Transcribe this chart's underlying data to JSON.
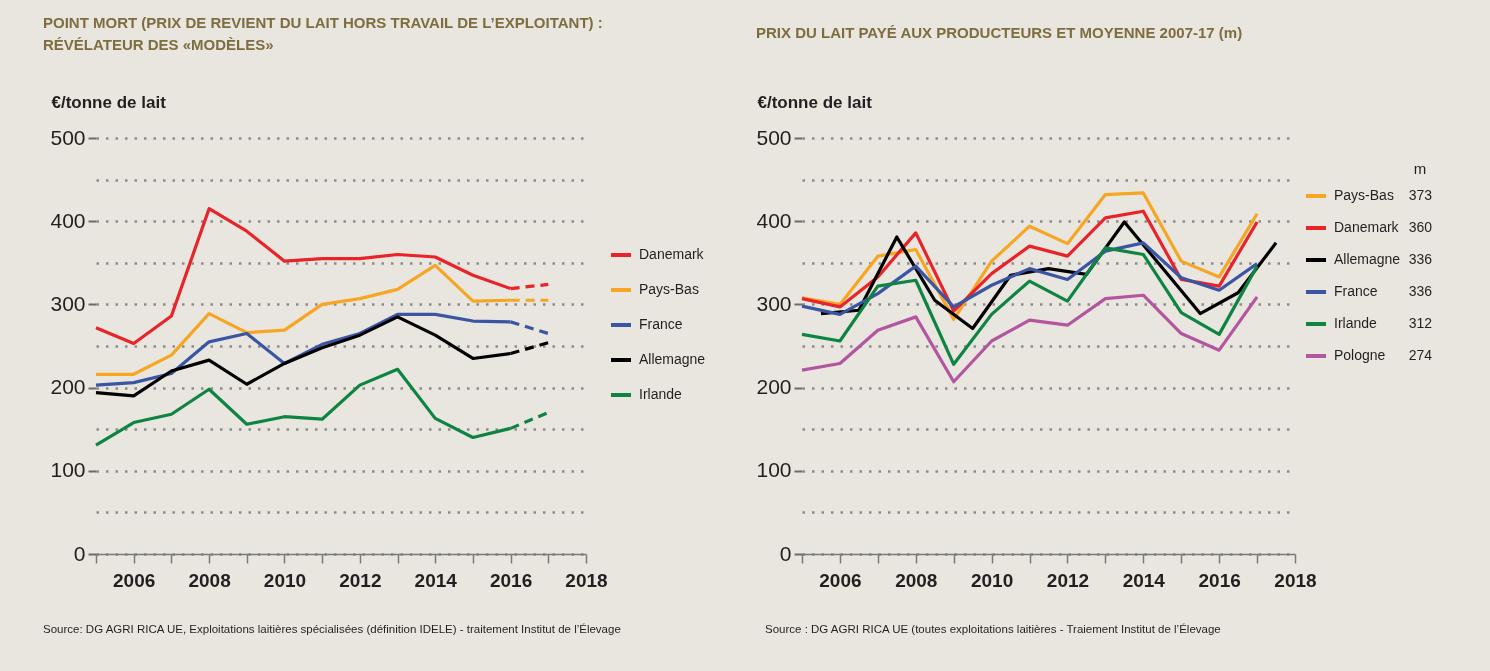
{
  "chart_data": [
    {
      "type": "line",
      "title": "POINT MORT (PRIX DE REVIENT DU LAIT HORS TRAVAIL DE L’EXPLOITANT) : RÉVÉLATEUR DES «MODÈLES»",
      "ylabel": "€/tonne de lait",
      "x": [
        2005,
        2006,
        2007,
        2008,
        2009,
        2010,
        2011,
        2012,
        2013,
        2014,
        2015,
        2016
      ],
      "series": [
        {
          "name": "Danemark",
          "color": "#e8232a",
          "values": [
            272,
            253,
            286,
            415,
            388,
            352,
            355,
            355,
            360,
            357,
            335,
            319
          ]
        },
        {
          "name": "Pays-Bas",
          "color": "#f6a623",
          "values": [
            216,
            216,
            239,
            289,
            266,
            269,
            300,
            307,
            318,
            347,
            304,
            305
          ]
        },
        {
          "name": "France",
          "color": "#3a55a4",
          "values": [
            203,
            206,
            217,
            255,
            265,
            229,
            252,
            265,
            288,
            288,
            280,
            279
          ]
        },
        {
          "name": "Allemagne",
          "color": "#000000",
          "values": [
            194,
            190,
            220,
            233,
            204,
            229,
            248,
            263,
            285,
            263,
            235,
            241
          ]
        },
        {
          "name": "Irlande",
          "color": "#0e8443",
          "values": [
            131,
            158,
            168,
            198,
            156,
            165,
            162,
            203,
            222,
            163,
            140,
            151
          ]
        },
        {
          "color": "#e8232a",
          "line_style": "dashed",
          "x": [
            2016,
            2017
          ],
          "values": [
            319,
            324
          ]
        },
        {
          "color": "#f6a623",
          "line_style": "dashed",
          "x": [
            2016,
            2017
          ],
          "values": [
            305,
            305
          ]
        },
        {
          "color": "#3a55a4",
          "line_style": "dashed",
          "x": [
            2016,
            2017
          ],
          "values": [
            279,
            265
          ]
        },
        {
          "color": "#000000",
          "line_style": "dashed",
          "x": [
            2016,
            2017
          ],
          "values": [
            241,
            254
          ]
        },
        {
          "color": "#0e8443",
          "line_style": "dashed",
          "x": [
            2016,
            2017
          ],
          "values": [
            151,
            170
          ]
        }
      ],
      "xlim": [
        2005,
        2018
      ],
      "xticks": [
        {
          "value": 2005,
          "label": null
        },
        2006,
        {
          "value": 2007,
          "label": null
        },
        2008,
        {
          "value": 2009,
          "label": null
        },
        2010,
        {
          "value": 2011,
          "label": null
        },
        2012,
        {
          "value": 2013,
          "label": null
        },
        2014,
        {
          "value": 2015,
          "label": null
        },
        2016,
        {
          "value": 2017,
          "label": null
        },
        2018
      ],
      "ylim": [
        0,
        500
      ],
      "yticks": [
        0,
        {
          "value": 50,
          "label": null
        },
        100,
        {
          "value": 150,
          "label": null
        },
        200,
        {
          "value": 250,
          "label": null
        },
        300,
        {
          "value": 350,
          "label": null
        },
        400,
        {
          "value": 450,
          "label": null
        },
        500
      ],
      "grid": "y",
      "legend": "right",
      "annotations": [
        "Source: DG AGRI RICA UE, Exploitations laitières spécialisées (définition IDELE) - traitement Institut de l’Élevage"
      ]
    },
    {
      "type": "line",
      "title": "PRIX DU LAIT PAYÉ AUX PRODUCTEURS ET MOYENNE 2007-17 (m)",
      "ylabel": "€/tonne de lait",
      "legend_title": "m",
      "x": [
        2005,
        2006,
        2007,
        2008,
        2009,
        2010,
        2011,
        2012,
        2013,
        2014,
        2015,
        2016,
        2017
      ],
      "series": [
        {
          "name": "Pays-Bas",
          "color": "#f6a623",
          "values": [
            308,
            300,
            358,
            366,
            282,
            352,
            394,
            373,
            432,
            434,
            352,
            333,
            409
          ]
        },
        {
          "name": "Danemark",
          "color": "#e8232a",
          "values": [
            307,
            297,
            333,
            386,
            292,
            337,
            370,
            358,
            404,
            412,
            330,
            322,
            399
          ]
        },
        {
          "name": "Allemagne",
          "color": "#000000",
          "x": [
            2005.5,
            2006.5,
            2007.5,
            2008.5,
            2009.5,
            2010.5,
            2011.5,
            2012.5,
            2013.5,
            2015.5,
            2016.5,
            2017.5
          ],
          "values": [
            289,
            293,
            381,
            305,
            271,
            335,
            343,
            336,
            399,
            289,
            314,
            374
          ]
        },
        {
          "name": "France",
          "color": "#3a55a4",
          "values": [
            298,
            288,
            313,
            346,
            297,
            323,
            343,
            330,
            364,
            374,
            332,
            317,
            349
          ]
        },
        {
          "name": "Irlande",
          "color": "#0e8443",
          "values": [
            264,
            256,
            322,
            329,
            228,
            288,
            328,
            304,
            368,
            360,
            290,
            264,
            346
          ]
        },
        {
          "name": "Pologne",
          "color": "#b455a0",
          "values": [
            221,
            229,
            269,
            285,
            207,
            256,
            281,
            275,
            307,
            311,
            265,
            245,
            309
          ]
        }
      ],
      "xlim": [
        2005,
        2018
      ],
      "xticks": [
        {
          "value": 2005,
          "label": null
        },
        2006,
        {
          "value": 2007,
          "label": null
        },
        2008,
        {
          "value": 2009,
          "label": null
        },
        2010,
        {
          "value": 2011,
          "label": null
        },
        2012,
        {
          "value": 2013,
          "label": null
        },
        2014,
        {
          "value": 2015,
          "label": null
        },
        2016,
        {
          "value": 2017,
          "label": null
        },
        2018
      ],
      "ylim": [
        0,
        500
      ],
      "yticks": [
        0,
        {
          "value": 50,
          "label": null
        },
        100,
        {
          "value": 150,
          "label": null
        },
        200,
        {
          "value": 250,
          "label": null
        },
        300,
        {
          "value": 350,
          "label": null
        },
        400,
        {
          "value": 450,
          "label": null
        },
        500
      ],
      "grid": "y",
      "legend": "right",
      "annotations": [
        "Source : DG AGRI RICA UE (toutes exploitations laitières - Traiement Institut de l’Élevage",
        "373",
        "360",
        "336",
        "336",
        "312",
        "274"
      ]
    }
  ]
}
